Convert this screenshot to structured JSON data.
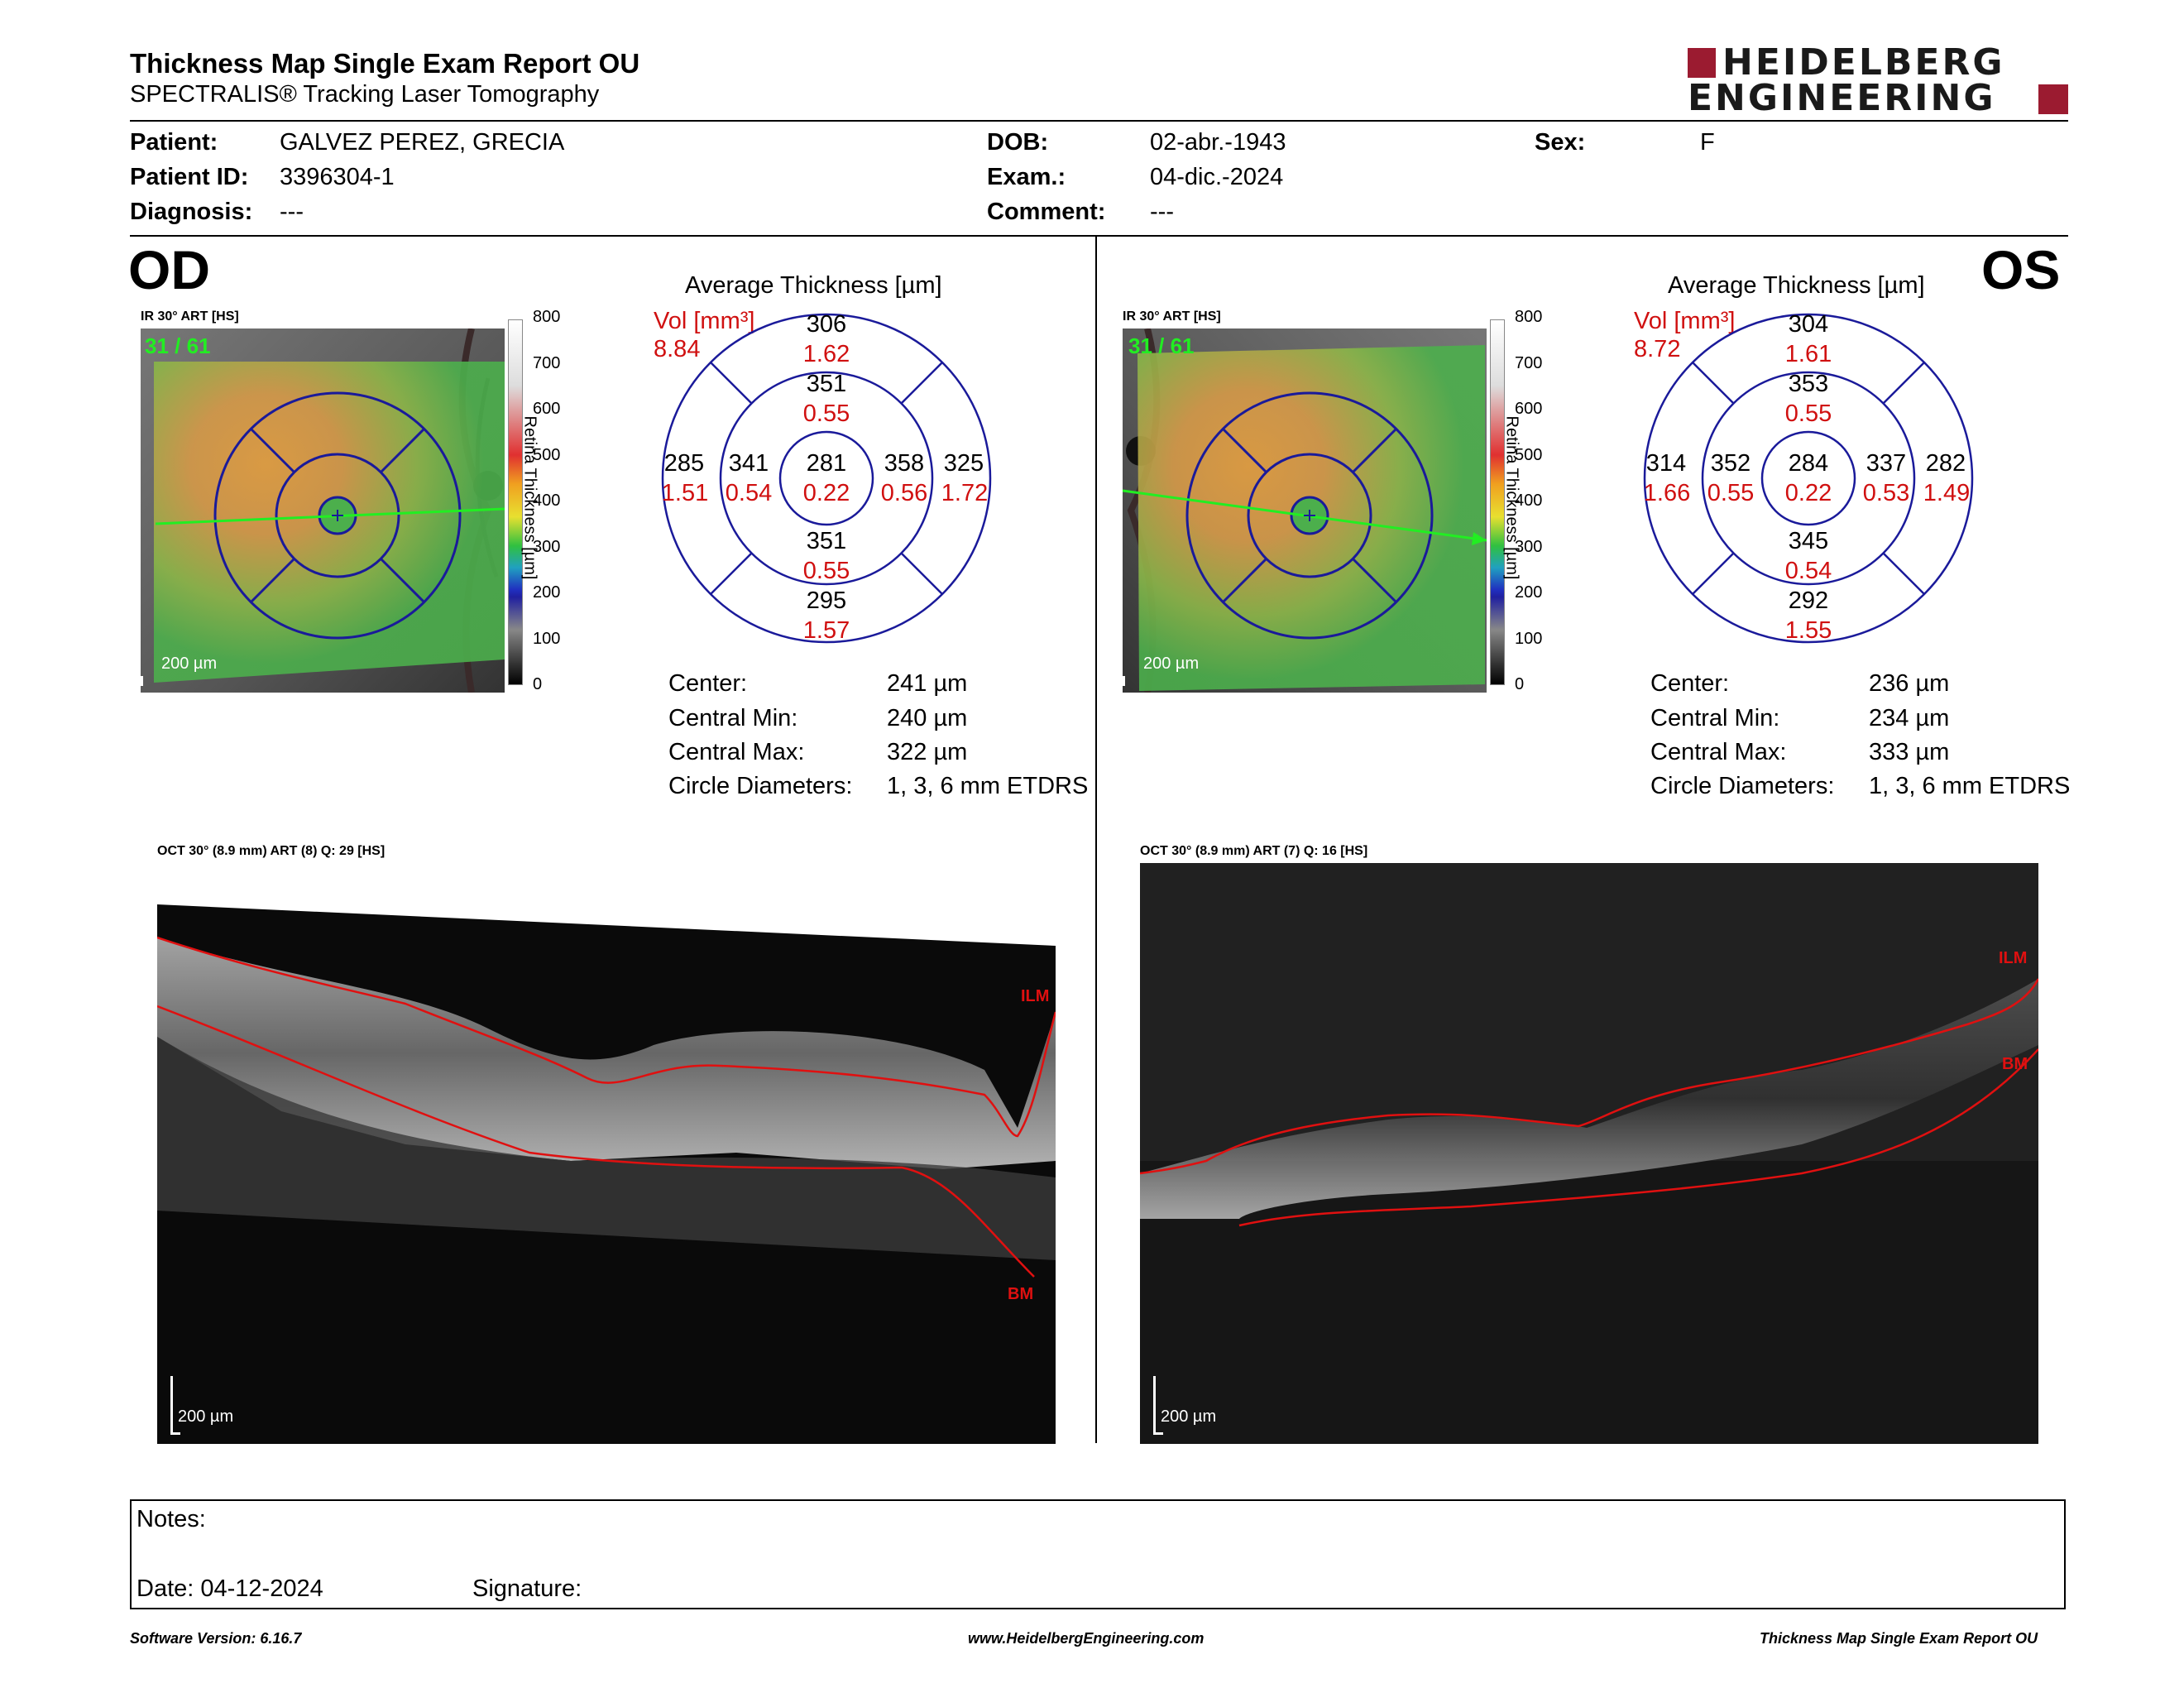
{
  "header": {
    "title": "Thickness Map Single Exam Report OU",
    "subtitle": "SPECTRALIS® Tracking Laser Tomography",
    "logo_line1": "HEIDELBERG",
    "logo_line2": "ENGINEERING",
    "brand_color": "#9b1b30"
  },
  "patient": {
    "patient_label": "Patient:",
    "patient_value": "GALVEZ PEREZ, GRECIA",
    "id_label": "Patient ID:",
    "id_value": "3396304-1",
    "diagnosis_label": "Diagnosis:",
    "diagnosis_value": "---",
    "dob_label": "DOB:",
    "dob_value": "02-abr.-1943",
    "exam_label": "Exam.:",
    "exam_value": "04-dic.-2024",
    "comment_label": "Comment:",
    "comment_value": "---",
    "sex_label": "Sex:",
    "sex_value": "F"
  },
  "od": {
    "eye_label": "OD",
    "ir_caption": "IR 30° ART [HS]",
    "frame_counter": "31 / 61",
    "ir_scale": "200 µm",
    "colorbar_ticks": [
      "800",
      "700",
      "600",
      "500",
      "400",
      "300",
      "200",
      "100",
      "0"
    ],
    "colorbar_label": "Retina Thickness [µm]",
    "avg_title": "Average Thickness [µm]",
    "vol_label": "Vol [mm³]",
    "vol_value": "8.84",
    "sectors": {
      "center": {
        "thickness": "281",
        "volume": "0.22"
      },
      "inner_superior": {
        "thickness": "351",
        "volume": "0.55"
      },
      "inner_nasal": {
        "thickness": "358",
        "volume": "0.56"
      },
      "inner_inferior": {
        "thickness": "351",
        "volume": "0.55"
      },
      "inner_temporal": {
        "thickness": "341",
        "volume": "0.54"
      },
      "outer_superior": {
        "thickness": "306",
        "volume": "1.62"
      },
      "outer_nasal": {
        "thickness": "325",
        "volume": "1.72"
      },
      "outer_inferior": {
        "thickness": "295",
        "volume": "1.57"
      },
      "outer_temporal": {
        "thickness": "285",
        "volume": "1.51"
      }
    },
    "stats": [
      {
        "label": "Center:",
        "value": "241 µm"
      },
      {
        "label": "Central Min:",
        "value": "240 µm"
      },
      {
        "label": "Central Max:",
        "value": "322 µm"
      },
      {
        "label": "Circle Diameters:",
        "value": "1, 3, 6 mm ETDRS"
      }
    ],
    "oct_caption": "OCT 30° (8.9 mm) ART (8) Q: 29 [HS]",
    "oct_scale": "200 µm",
    "ilm_label": "ILM",
    "bm_label": "BM"
  },
  "os": {
    "eye_label": "OS",
    "ir_caption": "IR 30° ART [HS]",
    "frame_counter": "31 / 61",
    "ir_scale": "200 µm",
    "colorbar_ticks": [
      "800",
      "700",
      "600",
      "500",
      "400",
      "300",
      "200",
      "100",
      "0"
    ],
    "colorbar_label": "Retina Thickness [µm]",
    "avg_title": "Average Thickness [µm]",
    "vol_label": "Vol [mm³]",
    "vol_value": "8.72",
    "sectors": {
      "center": {
        "thickness": "284",
        "volume": "0.22"
      },
      "inner_superior": {
        "thickness": "353",
        "volume": "0.55"
      },
      "inner_nasal": {
        "thickness": "352",
        "volume": "0.55"
      },
      "inner_inferior": {
        "thickness": "345",
        "volume": "0.54"
      },
      "inner_temporal": {
        "thickness": "337",
        "volume": "0.53"
      },
      "outer_superior": {
        "thickness": "304",
        "volume": "1.61"
      },
      "outer_nasal": {
        "thickness": "314",
        "volume": "1.66"
      },
      "outer_inferior": {
        "thickness": "292",
        "volume": "1.55"
      },
      "outer_temporal": {
        "thickness": "282",
        "volume": "1.49"
      }
    },
    "stats": [
      {
        "label": "Center:",
        "value": "236 µm"
      },
      {
        "label": "Central Min:",
        "value": "234 µm"
      },
      {
        "label": "Central Max:",
        "value": "333 µm"
      },
      {
        "label": "Circle Diameters:",
        "value": "1, 3, 6 mm ETDRS"
      }
    ],
    "oct_caption": "OCT 30° (8.9 mm) ART (7) Q: 16 [HS]",
    "oct_scale": "200 µm",
    "ilm_label": "ILM",
    "bm_label": "BM"
  },
  "notes": {
    "notes_label": "Notes:",
    "date_label": "Date: 04-12-2024",
    "signature_label": "Signature:"
  },
  "footer": {
    "software": "Software Version: 6.16.7",
    "website": "www.HeidelbergEngineering.com",
    "report_name": "Thickness Map Single Exam Report OU"
  },
  "colors": {
    "etdrs_grid": "#1a1a9a",
    "volume_text": "#d01010",
    "scan_line": "#22ee22",
    "segmentation": "#e01010"
  }
}
